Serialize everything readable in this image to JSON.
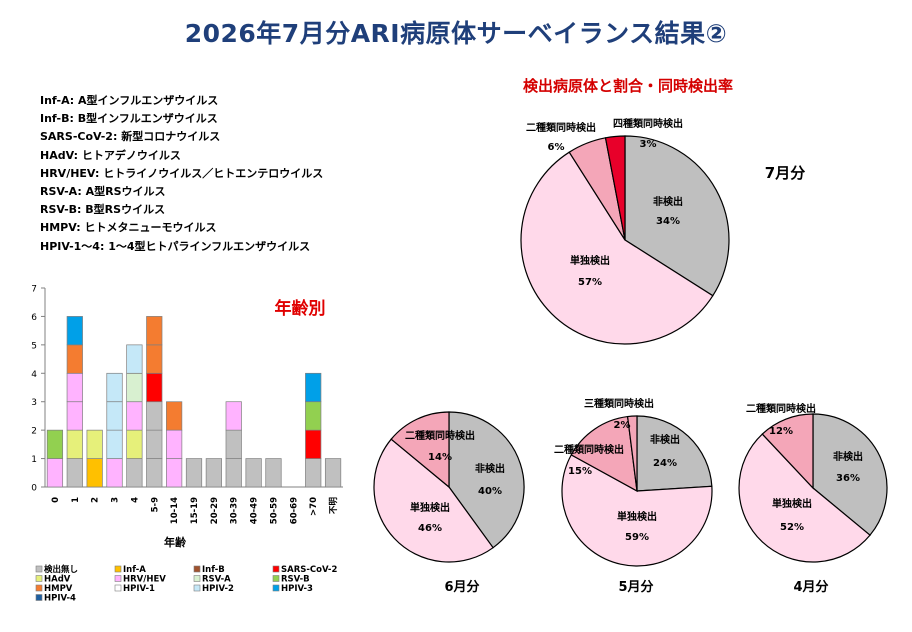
{
  "title": "2026年7月分ARI病原体サーベイランス結果②",
  "abbreviations": [
    {
      "abbr": "Inf-A:",
      "desc": "A型インフルエンザウイルス"
    },
    {
      "abbr": "Inf-B:",
      "desc": "B型インフルエンザウイルス"
    },
    {
      "abbr": "SARS-CoV-2:",
      "desc": "新型コロナウイルス"
    },
    {
      "abbr": "HAdV:",
      "desc": "ヒトアデノウイルス"
    },
    {
      "abbr": "HRV/HEV:",
      "desc": "ヒトライノウイルス／ヒトエンテロウイルス"
    },
    {
      "abbr": "RSV-A:",
      "desc": "A型RSウイルス"
    },
    {
      "abbr": "RSV-B:",
      "desc": "B型RSウイルス"
    },
    {
      "abbr": "HMPV:",
      "desc": "ヒトメタニューモウイルス"
    },
    {
      "abbr": "HPIV-1～4:",
      "desc": "1～4型ヒトパラインフルエンザウイルス"
    }
  ],
  "chart_data": [
    {
      "type": "bar",
      "stacked": true,
      "title": "年齢別",
      "xlabel": "年齢",
      "ylabel": "",
      "ylim": [
        0,
        7
      ],
      "yticks": [
        0,
        1,
        2,
        3,
        4,
        5,
        6,
        7
      ],
      "grid": false,
      "legend_position": "bottom",
      "categories": [
        "0",
        "1",
        "2",
        "3",
        "4",
        "5-9",
        "10-14",
        "15-19",
        "20-29",
        "30-39",
        "40-49",
        "50-59",
        "60-69",
        ">70",
        "不明"
      ],
      "series": [
        {
          "name": "検出無し",
          "color": "#c0c0c0",
          "values": [
            0,
            1,
            0,
            0,
            1,
            3,
            0,
            1,
            1,
            2,
            1,
            1,
            0,
            1,
            1
          ]
        },
        {
          "name": "Inf-A",
          "color": "#ffc000",
          "values": [
            0,
            0,
            1,
            0,
            0,
            0,
            0,
            0,
            0,
            0,
            0,
            0,
            0,
            0,
            0
          ]
        },
        {
          "name": "Inf-B",
          "color": "#a0522d",
          "values": [
            0,
            0,
            0,
            0,
            0,
            0,
            0,
            0,
            0,
            0,
            0,
            0,
            0,
            0,
            0
          ]
        },
        {
          "name": "SARS-CoV-2",
          "color": "#ff0000",
          "values": [
            0,
            0,
            0,
            0,
            0,
            1,
            0,
            0,
            0,
            0,
            0,
            0,
            0,
            1,
            0
          ]
        },
        {
          "name": "HAdV",
          "color": "#e6f07a",
          "values": [
            0,
            1,
            1,
            0,
            1,
            0,
            0,
            0,
            0,
            0,
            0,
            0,
            0,
            0,
            0
          ]
        },
        {
          "name": "HRV/HEV",
          "color": "#ffb3ff",
          "values": [
            1,
            2,
            0,
            1,
            1,
            0,
            2,
            0,
            0,
            1,
            0,
            0,
            0,
            0,
            0
          ]
        },
        {
          "name": "RSV-A",
          "color": "#d8f0d0",
          "values": [
            0,
            0,
            0,
            0,
            1,
            0,
            0,
            0,
            0,
            0,
            0,
            0,
            0,
            0,
            0
          ]
        },
        {
          "name": "RSV-B",
          "color": "#92d050",
          "values": [
            1,
            0,
            0,
            0,
            0,
            0,
            0,
            0,
            0,
            0,
            0,
            0,
            0,
            1,
            0
          ]
        },
        {
          "name": "HMPV",
          "color": "#f47c30",
          "values": [
            0,
            1,
            0,
            0,
            0,
            2,
            1,
            0,
            0,
            0,
            0,
            0,
            0,
            0,
            0
          ]
        },
        {
          "name": "HPIV-1",
          "color": "#ffffff",
          "values": [
            0,
            0,
            0,
            0,
            0,
            0,
            0,
            0,
            0,
            0,
            0,
            0,
            0,
            0,
            0
          ]
        },
        {
          "name": "HPIV-2",
          "color": "#c5e8f8",
          "values": [
            0,
            0,
            0,
            3,
            1,
            0,
            0,
            0,
            0,
            0,
            0,
            0,
            0,
            0,
            0
          ]
        },
        {
          "name": "HPIV-3",
          "color": "#00a0e8",
          "values": [
            0,
            1,
            0,
            0,
            0,
            0,
            0,
            0,
            0,
            0,
            0,
            0,
            0,
            1,
            0
          ]
        },
        {
          "name": "HPIV-4",
          "color": "#1f5fa0",
          "values": [
            0,
            0,
            0,
            0,
            0,
            0,
            0,
            0,
            0,
            0,
            0,
            0,
            0,
            0,
            0
          ]
        }
      ]
    },
    {
      "type": "pie",
      "title": "7月分",
      "section_title": "検出病原体と割合・同時検出率",
      "slices": [
        {
          "label": "非検出",
          "value": 34,
          "pct": "34%",
          "color": "#bfbfbf"
        },
        {
          "label": "単独検出",
          "value": 57,
          "pct": "57%",
          "color": "#ffd9ea"
        },
        {
          "label": "二種類同時検出",
          "value": 6,
          "pct": "6%",
          "color": "#f4a6b8"
        },
        {
          "label": "四種類同時検出",
          "value": 3,
          "pct": "3%",
          "color": "#e8002a"
        }
      ]
    },
    {
      "type": "pie",
      "title": "6月分",
      "slices": [
        {
          "label": "非検出",
          "value": 40,
          "pct": "40%",
          "color": "#bfbfbf"
        },
        {
          "label": "単独検出",
          "value": 46,
          "pct": "46%",
          "color": "#ffd9ea"
        },
        {
          "label": "二種類同時検出",
          "value": 14,
          "pct": "14%",
          "color": "#f4a6b8"
        }
      ]
    },
    {
      "type": "pie",
      "title": "5月分",
      "slices": [
        {
          "label": "非検出",
          "value": 24,
          "pct": "24%",
          "color": "#bfbfbf"
        },
        {
          "label": "単独検出",
          "value": 59,
          "pct": "59%",
          "color": "#ffd9ea"
        },
        {
          "label": "二種類同時検出",
          "value": 15,
          "pct": "15%",
          "color": "#f4a6b8"
        },
        {
          "label": "三種類同時検出",
          "value": 2,
          "pct": "2%",
          "color": "#f4a6b8"
        }
      ]
    },
    {
      "type": "pie",
      "title": "4月分",
      "slices": [
        {
          "label": "非検出",
          "value": 36,
          "pct": "36%",
          "color": "#bfbfbf"
        },
        {
          "label": "単独検出",
          "value": 52,
          "pct": "52%",
          "color": "#ffd9ea"
        },
        {
          "label": "二種類同時検出",
          "value": 12,
          "pct": "12%",
          "color": "#f4a6b8"
        }
      ]
    }
  ]
}
